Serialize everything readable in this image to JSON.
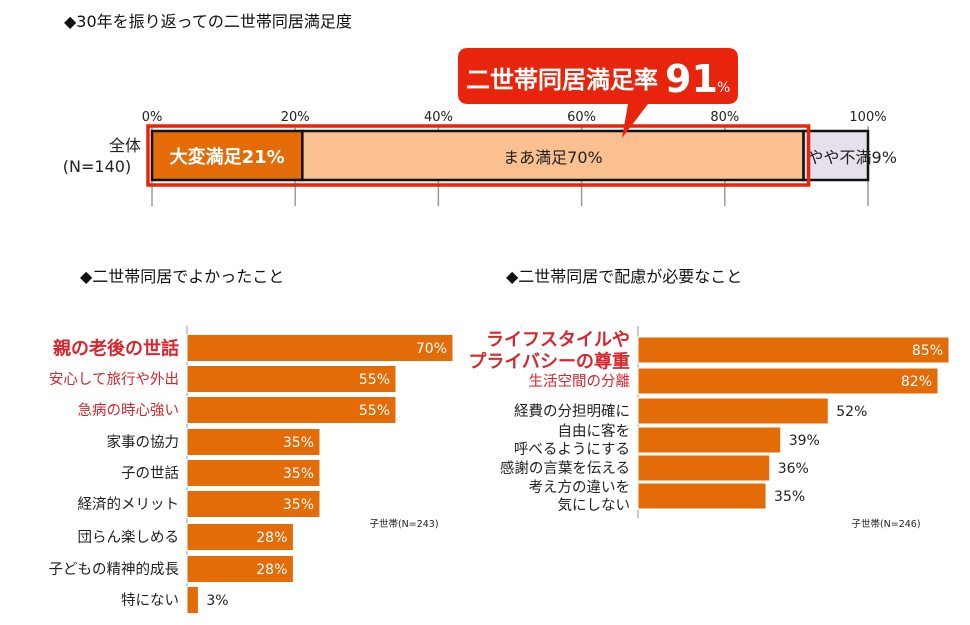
{
  "top_title": "◆30年を振り返っての二世帯同居満足度",
  "left_title": "◆二世帯同居でよかったこと",
  "right_title": "◆二世帯同居で配慮が必要なこと",
  "colors": {
    "very_satisfied": "#e36c09",
    "somewhat_satisfied": "#fac090",
    "somewhat_dissatisfied": "#e6e0ec",
    "highlight_red": "#e8250c",
    "bar_orange": "#e36c09",
    "red_label": "#d9262c"
  },
  "chart_data": [
    {
      "type": "bar",
      "orientation": "horizontal-stacked",
      "title": "◆30年を振り返っての二世帯同居満足度",
      "row_label_line1": "全体",
      "row_label_line2": "(N=140)",
      "ticks": [
        "0%",
        "20%",
        "40%",
        "60%",
        "80%",
        "100%"
      ],
      "xlim": [
        0,
        100
      ],
      "segments": [
        {
          "name": "大変満足",
          "value": 21,
          "label": "大変満足21%",
          "color": "#e36c09"
        },
        {
          "name": "まあ満足",
          "value": 70,
          "label": "まあ満足70%",
          "color": "#fac090"
        },
        {
          "name": "やや不満",
          "value": 9,
          "label": "やや不満9%",
          "color": "#e6e0ec"
        }
      ],
      "callout": {
        "text": "二世帯同居満足率",
        "number": "91",
        "unit": "%"
      }
    },
    {
      "type": "bar",
      "orientation": "horizontal",
      "title": "◆二世帯同居でよかったこと",
      "note": "子世帯(N=243)",
      "xlim": [
        0,
        70
      ],
      "categories": [
        {
          "label": "親の老後の世話",
          "value": 70,
          "value_label": "70%",
          "style": "bold-red"
        },
        {
          "label": "安心して旅行や外出",
          "value": 55,
          "value_label": "55%",
          "style": "red"
        },
        {
          "label": "急病の時心強い",
          "value": 55,
          "value_label": "55%",
          "style": "red"
        },
        {
          "label": "家事の協力",
          "value": 35,
          "value_label": "35%",
          "style": "normal"
        },
        {
          "label": "子の世話",
          "value": 35,
          "value_label": "35%",
          "style": "normal"
        },
        {
          "label": "経済的メリット",
          "value": 35,
          "value_label": "35%",
          "style": "normal"
        },
        {
          "label": "団らん楽しめる",
          "value": 28,
          "value_label": "28%",
          "style": "normal"
        },
        {
          "label": "子どもの精神的成長",
          "value": 28,
          "value_label": "28%",
          "style": "normal"
        },
        {
          "label": "特にない",
          "value": 3,
          "value_label": "3%",
          "style": "normal"
        }
      ]
    },
    {
      "type": "bar",
      "orientation": "horizontal",
      "title": "◆二世帯同居で配慮が必要なこと",
      "note": "子世帯(N=246)",
      "xlim": [
        0,
        85
      ],
      "categories": [
        {
          "label": [
            "ライフスタイルや",
            "プライバシーの尊重"
          ],
          "value": 85,
          "value_label": "85%",
          "style": "bold-red"
        },
        {
          "label": [
            "生活空間の分離"
          ],
          "value": 82,
          "value_label": "82%",
          "style": "red"
        },
        {
          "label": [
            "経費の分担明確に"
          ],
          "value": 52,
          "value_label": "52%",
          "style": "normal"
        },
        {
          "label": [
            "自由に客を",
            "呼べるようにする"
          ],
          "value": 39,
          "value_label": "39%",
          "style": "normal"
        },
        {
          "label": [
            "感謝の言葉を伝える"
          ],
          "value": 36,
          "value_label": "36%",
          "style": "normal"
        },
        {
          "label": [
            "考え方の違いを",
            "気にしない"
          ],
          "value": 35,
          "value_label": "35%",
          "style": "normal"
        }
      ]
    }
  ]
}
